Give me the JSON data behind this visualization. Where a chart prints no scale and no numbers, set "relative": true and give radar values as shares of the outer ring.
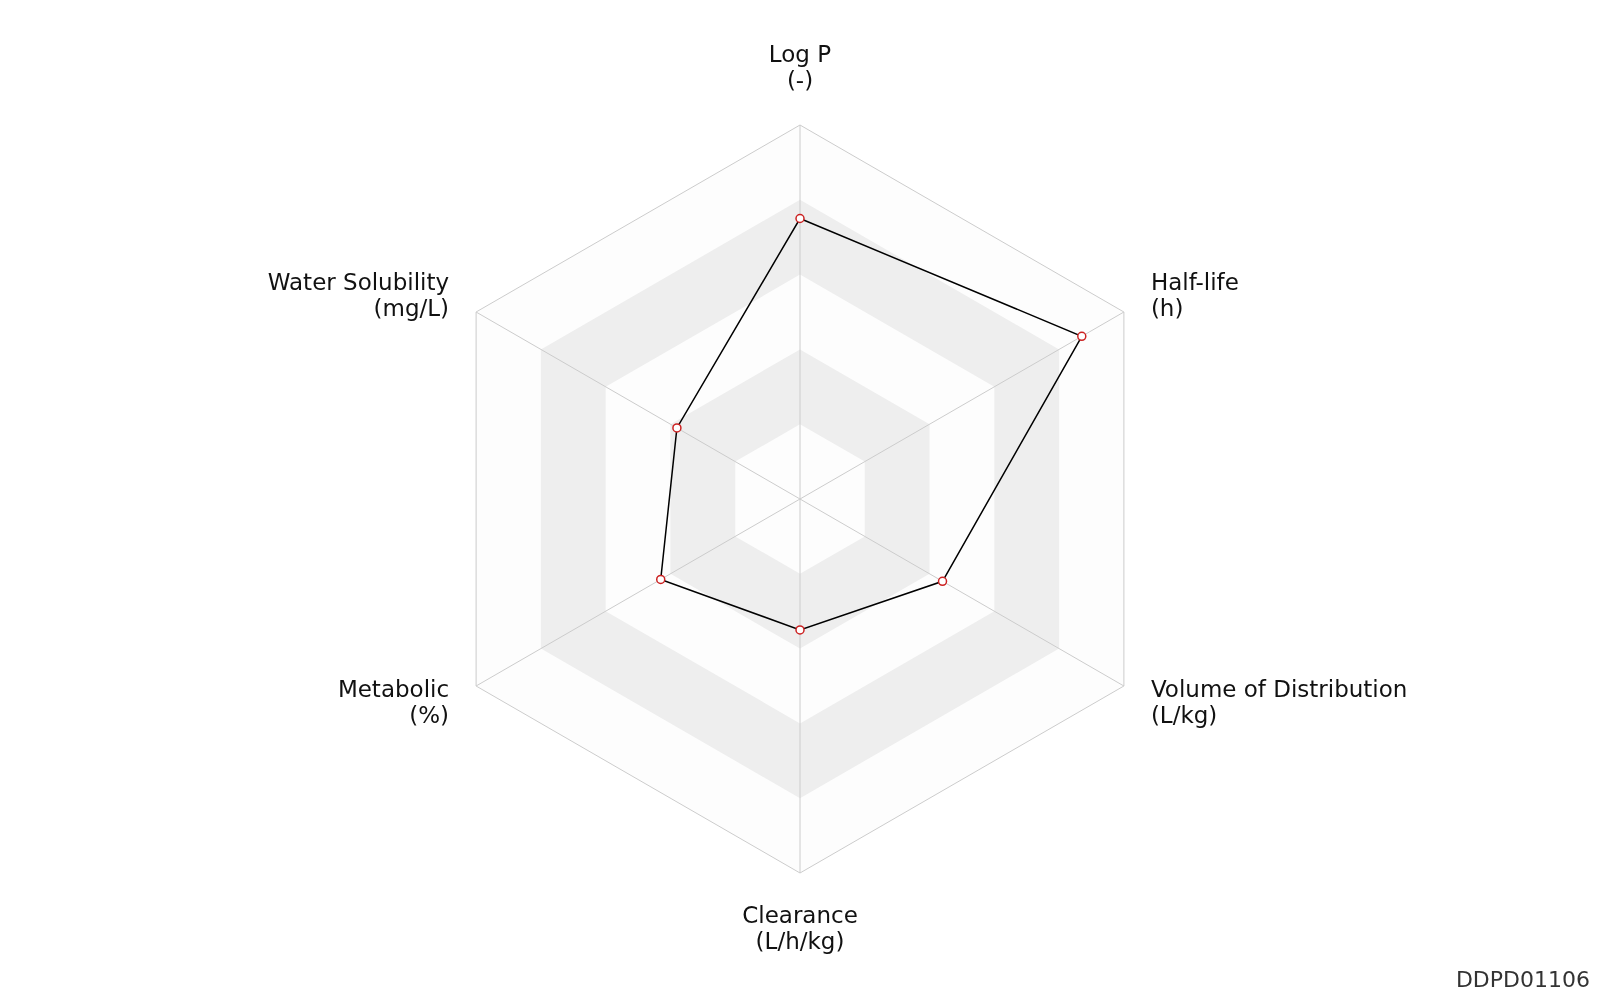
{
  "chart_data": {
    "type": "radar",
    "relative": true,
    "grid": true,
    "marker": "circle",
    "categories": [
      "Log P\n(-)",
      "Half-life\n(h)",
      "Volume of Distribution\n(L/kg)",
      "Clearance\n(L/h/kg)",
      "Metabolic\n(%)",
      "Water Solubility\n(mg/L)"
    ],
    "series": [
      {
        "color": "#000000",
        "values": [
          0.75,
          0.87,
          0.44,
          0.35,
          0.43,
          0.38
        ]
      }
    ],
    "annotations": [
      "DDPD01106"
    ]
  }
}
